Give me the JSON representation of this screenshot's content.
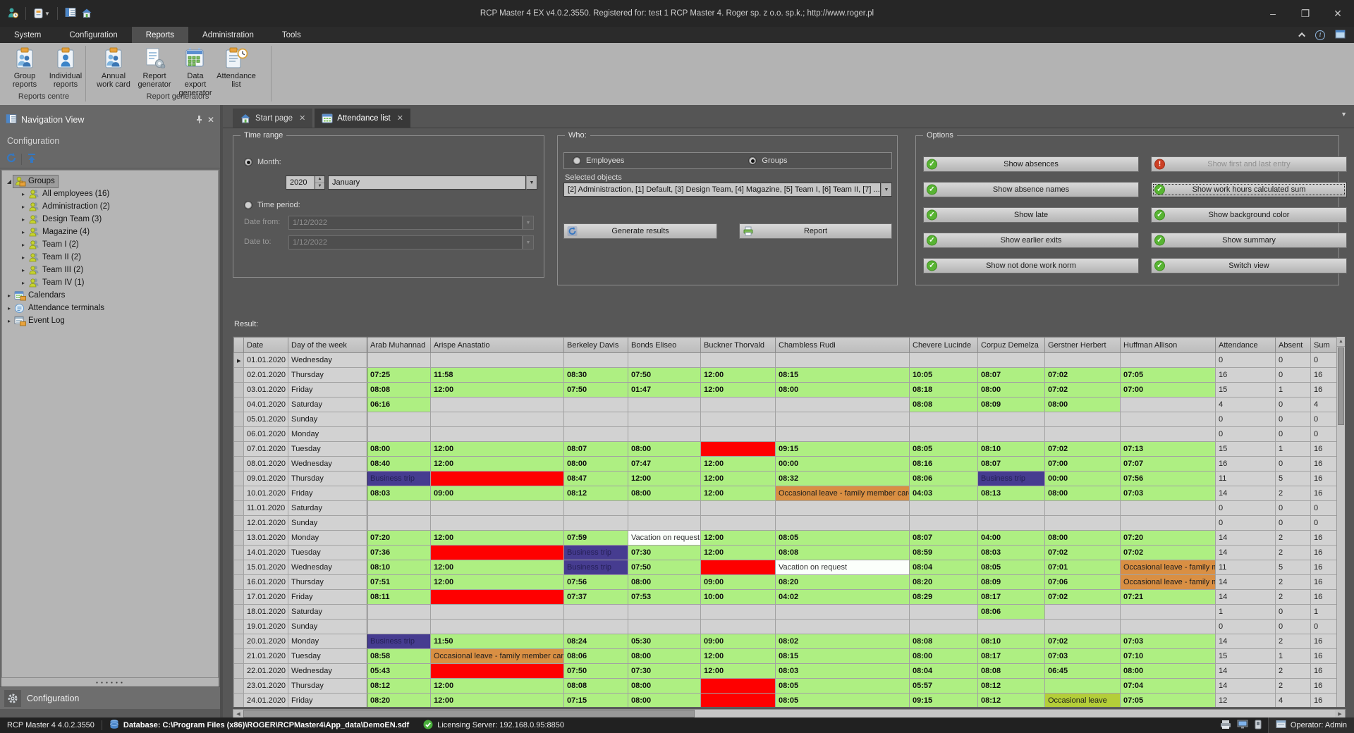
{
  "title_bar": {
    "title": "RCP Master 4 EX v4.0.2.3550. Registered for: test 1 RCP Master 4. Roger sp. z o.o. sp.k.;  http://www.roger.pl"
  },
  "menu": {
    "items": [
      {
        "label": "System"
      },
      {
        "label": "Configuration"
      },
      {
        "label": "Reports",
        "active": true
      },
      {
        "label": "Administration"
      },
      {
        "label": "Tools"
      }
    ]
  },
  "ribbon": {
    "buttons": [
      {
        "label": "Group reports",
        "icon": "group-reports",
        "group": 0
      },
      {
        "label": "Individual reports",
        "icon": "individual-reports",
        "group": 0
      },
      {
        "label": "Annual work card",
        "icon": "annual-work-card",
        "group": 1
      },
      {
        "label": "Report generator",
        "icon": "report-generator",
        "group": 1
      },
      {
        "label": "Data export generator",
        "icon": "data-export-generator",
        "group": 1
      },
      {
        "label": "Attendance list",
        "icon": "attendance-list",
        "group": 1
      }
    ],
    "groups": [
      "Reports centre",
      "Report generators"
    ]
  },
  "sidebar": {
    "header": "Navigation View",
    "section": "Configuration",
    "tree": [
      {
        "label": "Groups",
        "level": 0,
        "icon": "groups-folder",
        "expanded": true,
        "selected": true
      },
      {
        "label": "All employees (16)",
        "level": 1,
        "icon": "group"
      },
      {
        "label": "Administraction (2)",
        "level": 1,
        "icon": "group"
      },
      {
        "label": "Design Team (3)",
        "level": 1,
        "icon": "group"
      },
      {
        "label": "Magazine (4)",
        "level": 1,
        "icon": "group"
      },
      {
        "label": "Team I (2)",
        "level": 1,
        "icon": "group"
      },
      {
        "label": "Team II (2)",
        "level": 1,
        "icon": "group"
      },
      {
        "label": "Team III (2)",
        "level": 1,
        "icon": "group"
      },
      {
        "label": "Team IV (1)",
        "level": 1,
        "icon": "group"
      },
      {
        "label": "Calendars",
        "level": 0,
        "icon": "calendars"
      },
      {
        "label": "Attendance terminals",
        "level": 0,
        "icon": "terminal"
      },
      {
        "label": "Event Log",
        "level": 0,
        "icon": "event-log"
      }
    ],
    "bottom_item": "Configuration"
  },
  "tabs": [
    {
      "label": "Start page",
      "icon": "home"
    },
    {
      "label": "Attendance list",
      "icon": "calendar",
      "active": true
    }
  ],
  "time_range": {
    "legend": "Time range",
    "month_radio": "Month:",
    "year": "2020",
    "month": "January",
    "period_radio": "Time period:",
    "date_from_label": "Date from:",
    "date_from": "1/12/2022",
    "date_to_label": "Date to:",
    "date_to": "1/12/2022"
  },
  "who": {
    "legend": "Who:",
    "employees_radio": "Employees",
    "groups_radio": "Groups",
    "selected_objects_label": "Selected objects",
    "selected_objects": "[2] Administraction, [1] Default, [3] Design Team, [4] Magazine, [5] Team I, [6] Team II, [7] ...",
    "generate_button": "Generate results",
    "report_button": "Report"
  },
  "options": {
    "legend": "Options",
    "buttons": [
      {
        "label": "Show absences",
        "state": "on"
      },
      {
        "label": "Show first and last entry",
        "state": "off"
      },
      {
        "label": "Show absence names",
        "state": "on"
      },
      {
        "label": "Show work hours calculated sum",
        "state": "on",
        "focused": true
      },
      {
        "label": "Show late",
        "state": "on"
      },
      {
        "label": "Show background color",
        "state": "on"
      },
      {
        "label": "Show earlier exits",
        "state": "on"
      },
      {
        "label": "Show summary",
        "state": "on"
      },
      {
        "label": "Show not done work norm",
        "state": "on"
      },
      {
        "label": "Switch view",
        "state": "on"
      }
    ]
  },
  "result": {
    "label": "Result:",
    "columns": [
      "Date",
      "Day of the week",
      "Arab Muhannad",
      "Arispe Anastatio",
      "Berkeley Davis",
      "Bonds Eliseo",
      "Buckner Thorvald",
      "Chambless Rudi",
      "Chevere Lucinde",
      "Corpuz Demelza",
      "Gerstner Herbert",
      "Huffman Allison",
      "Attendance",
      "Absent",
      "Sum"
    ],
    "rows": [
      {
        "date": "01.01.2020",
        "day": "Wednesday",
        "cells": [
          "",
          "",
          "",
          "",
          "",
          "",
          "",
          "",
          "",
          ""
        ],
        "attendance": "0",
        "absent": "0",
        "sum": "0"
      },
      {
        "date": "02.01.2020",
        "day": "Thursday",
        "cells": [
          "07:25",
          "11:58",
          "08:30",
          "07:50",
          "12:00",
          "08:15",
          "10:05",
          "08:07",
          "07:02",
          "07:05"
        ],
        "attendance": "16",
        "absent": "0",
        "sum": "16"
      },
      {
        "date": "03.01.2020",
        "day": "Friday",
        "cells": [
          "08:08",
          "12:00",
          "07:50",
          "01:47",
          "12:00",
          "08:00",
          "08:18",
          "08:00",
          "07:02",
          "07:00"
        ],
        "attendance": "15",
        "absent": "1",
        "sum": "16"
      },
      {
        "date": "04.01.2020",
        "day": "Saturday",
        "cells": [
          "06:16",
          "",
          "",
          "",
          "",
          "",
          "08:08",
          "08:09",
          "08:00",
          ""
        ],
        "attendance": "4",
        "absent": "0",
        "sum": "4"
      },
      {
        "date": "05.01.2020",
        "day": "Sunday",
        "cells": [
          "",
          "",
          "",
          "",
          "",
          "",
          "",
          "",
          "",
          ""
        ],
        "attendance": "0",
        "absent": "0",
        "sum": "0"
      },
      {
        "date": "06.01.2020",
        "day": "Monday",
        "cells": [
          "",
          "",
          "",
          "",
          "",
          "",
          "",
          "",
          "",
          ""
        ],
        "attendance": "0",
        "absent": "0",
        "sum": "0"
      },
      {
        "date": "07.01.2020",
        "day": "Tuesday",
        "cells": [
          "08:00",
          "12:00",
          "08:07",
          "08:00",
          {
            "t": "",
            "bg": "red"
          },
          "09:15",
          "08:05",
          "08:10",
          "07:02",
          "07:13"
        ],
        "attendance": "15",
        "absent": "1",
        "sum": "16"
      },
      {
        "date": "08.01.2020",
        "day": "Wednesday",
        "cells": [
          "08:40",
          "12:00",
          "08:00",
          "07:47",
          "12:00",
          "00:00",
          "08:16",
          "08:07",
          "07:00",
          "07:07"
        ],
        "attendance": "16",
        "absent": "0",
        "sum": "16"
      },
      {
        "date": "09.01.2020",
        "day": "Thursday",
        "cells": [
          {
            "t": "Business trip",
            "bg": "blue"
          },
          {
            "t": "",
            "bg": "red"
          },
          "08:47",
          "12:00",
          "12:00",
          "08:32",
          "08:06",
          {
            "t": "Business trip",
            "bg": "blue"
          },
          "00:00",
          "07:56"
        ],
        "attendance": "11",
        "absent": "5",
        "sum": "16"
      },
      {
        "date": "10.01.2020",
        "day": "Friday",
        "cells": [
          "08:03",
          "09:00",
          "08:12",
          "08:00",
          "12:00",
          {
            "t": "Occasional leave - family member care",
            "bg": "orange"
          },
          "04:03",
          "08:13",
          "08:00",
          "07:03"
        ],
        "attendance": "14",
        "absent": "2",
        "sum": "16"
      },
      {
        "date": "11.01.2020",
        "day": "Saturday",
        "cells": [
          "",
          "",
          "",
          "",
          "",
          "",
          "",
          "",
          "",
          ""
        ],
        "attendance": "0",
        "absent": "0",
        "sum": "0"
      },
      {
        "date": "12.01.2020",
        "day": "Sunday",
        "cells": [
          "",
          "",
          "",
          "",
          "",
          "",
          "",
          "",
          "",
          ""
        ],
        "attendance": "0",
        "absent": "0",
        "sum": "0"
      },
      {
        "date": "13.01.2020",
        "day": "Monday",
        "cells": [
          "07:20",
          "12:00",
          "07:59",
          {
            "t": "Vacation on request",
            "bg": "white"
          },
          "12:00",
          "08:05",
          "08:07",
          "04:00",
          "08:00",
          "07:20"
        ],
        "attendance": "14",
        "absent": "2",
        "sum": "16"
      },
      {
        "date": "14.01.2020",
        "day": "Tuesday",
        "cells": [
          "07:36",
          {
            "t": "",
            "bg": "red"
          },
          {
            "t": "Business trip",
            "bg": "blue"
          },
          "07:30",
          "12:00",
          "08:08",
          "08:59",
          "08:03",
          "07:02",
          "07:02"
        ],
        "attendance": "14",
        "absent": "2",
        "sum": "16"
      },
      {
        "date": "15.01.2020",
        "day": "Wednesday",
        "cells": [
          "08:10",
          "12:00",
          {
            "t": "Business trip",
            "bg": "blue"
          },
          "07:50",
          {
            "t": "",
            "bg": "red"
          },
          {
            "t": "Vacation on request",
            "bg": "white"
          },
          "08:04",
          "08:05",
          "07:01",
          {
            "t": "Occasional leave - family member care",
            "bg": "orange"
          }
        ],
        "attendance": "11",
        "absent": "5",
        "sum": "16"
      },
      {
        "date": "16.01.2020",
        "day": "Thursday",
        "cells": [
          "07:51",
          "12:00",
          "07:56",
          "08:00",
          "09:00",
          "08:20",
          "08:20",
          "08:09",
          "07:06",
          {
            "t": "Occasional leave - family member care",
            "bg": "orange"
          }
        ],
        "attendance": "14",
        "absent": "2",
        "sum": "16"
      },
      {
        "date": "17.01.2020",
        "day": "Friday",
        "cells": [
          "08:11",
          {
            "t": "",
            "bg": "red"
          },
          "07:37",
          "07:53",
          "10:00",
          "04:02",
          "08:29",
          "08:17",
          "07:02",
          "07:21"
        ],
        "attendance": "14",
        "absent": "2",
        "sum": "16"
      },
      {
        "date": "18.01.2020",
        "day": "Saturday",
        "cells": [
          "",
          "",
          "",
          "",
          "",
          "",
          "",
          "08:06",
          "",
          ""
        ],
        "attendance": "1",
        "absent": "0",
        "sum": "1"
      },
      {
        "date": "19.01.2020",
        "day": "Sunday",
        "cells": [
          "",
          "",
          "",
          "",
          "",
          "",
          "",
          "",
          "",
          ""
        ],
        "attendance": "0",
        "absent": "0",
        "sum": "0"
      },
      {
        "date": "20.01.2020",
        "day": "Monday",
        "cells": [
          {
            "t": "Business trip",
            "bg": "blue"
          },
          "11:50",
          "08:24",
          "05:30",
          "09:00",
          "08:02",
          "08:08",
          "08:10",
          "07:02",
          "07:03"
        ],
        "attendance": "14",
        "absent": "2",
        "sum": "16"
      },
      {
        "date": "21.01.2020",
        "day": "Tuesday",
        "cells": [
          "08:58",
          {
            "t": "Occasional leave - family member care",
            "bg": "orange"
          },
          "08:06",
          "08:00",
          "12:00",
          "08:15",
          "08:00",
          "08:17",
          "07:03",
          "07:10"
        ],
        "attendance": "15",
        "absent": "1",
        "sum": "16"
      },
      {
        "date": "22.01.2020",
        "day": "Wednesday",
        "cells": [
          "05:43",
          {
            "t": "",
            "bg": "red"
          },
          "07:50",
          "07:30",
          "12:00",
          "08:03",
          "08:04",
          "08:08",
          "06:45",
          "08:00"
        ],
        "attendance": "14",
        "absent": "2",
        "sum": "16"
      },
      {
        "date": "23.01.2020",
        "day": "Thursday",
        "cells": [
          "08:12",
          "12:00",
          "08:08",
          "08:00",
          {
            "t": "",
            "bg": "red"
          },
          "08:05",
          "05:57",
          "08:12",
          {
            "t": "",
            "bg": "green"
          },
          "07:04"
        ],
        "attendance": "14",
        "absent": "2",
        "sum": "16"
      },
      {
        "date": "24.01.2020",
        "day": "Friday",
        "cells": [
          "08:20",
          "12:00",
          "07:15",
          "08:00",
          {
            "t": "",
            "bg": "red"
          },
          "08:05",
          "09:15",
          "08:12",
          {
            "t": "Occasional leave",
            "bg": "ygreen"
          },
          "07:05"
        ],
        "attendance": "12",
        "absent": "4",
        "sum": "16"
      }
    ]
  },
  "status_bar": {
    "version": "RCP Master 4 4.0.2.3550",
    "database": "Database: C:\\Program Files (x86)\\ROGER\\RCPMaster4\\App_data\\DemoEN.sdf",
    "license": "Licensing Server: 192.168.0.95:8850",
    "operator": "Operator: Admin"
  },
  "colors": {
    "cell_present_green": "#aeef82",
    "cell_absence_red": "#fe0000",
    "cell_business_trip_blue": "#463c90",
    "cell_occasional_leave_orange": "#d98f43",
    "cell_vacation_white": "#fbfffb",
    "cell_occasional_leave_ygreen": "#b4ce39",
    "option_on_green": "#58b433",
    "option_off_red": "#cc4025"
  }
}
